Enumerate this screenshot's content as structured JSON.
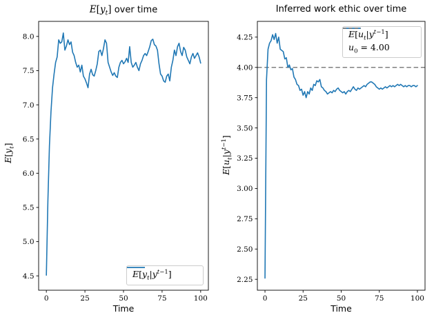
{
  "figure": {
    "background": "#ffffff",
    "accent_blue": "#1f77b4",
    "gray": "#7f7f7f"
  },
  "left_plot": {
    "title_math": "E[y_t]",
    "title_suffix": " over time",
    "ylabel_math": "E[y_t]",
    "xlabel": "Time",
    "legend": {
      "position": "lower right",
      "entries": [
        {
          "label_math": "E[y_t|y^{t-1}]",
          "color": "#1f77b4",
          "style": "solid"
        }
      ]
    }
  },
  "right_plot": {
    "title": "Inferred work ethic over time",
    "ylabel_math": "E[u_t|y^{t-1}]",
    "xlabel": "Time",
    "legend": {
      "position": "upper right",
      "entries": [
        {
          "label_math": "E[u_t|y^{t-1}]",
          "color": "#1f77b4",
          "style": "solid"
        },
        {
          "label_math": "u_0 = 4.00",
          "color": "#7f7f7f",
          "style": "dashed"
        }
      ]
    }
  },
  "chart_data": [
    {
      "type": "line",
      "title": "E[y_t] over time",
      "xlabel": "Time",
      "ylabel": "E[y_t]",
      "xlim": [
        -5,
        105
      ],
      "ylim": [
        4.29,
        8.22
      ],
      "xticks": [
        0,
        25,
        50,
        75,
        100
      ],
      "xtick_labels": [
        "0",
        "25",
        "50",
        "75",
        "100"
      ],
      "yticks": [
        4.5,
        5.0,
        5.5,
        6.0,
        6.5,
        7.0,
        7.5,
        8.0
      ],
      "ytick_labels": [
        "4.5",
        "5.0",
        "5.5",
        "6.0",
        "6.5",
        "7.0",
        "7.5",
        "8.0"
      ],
      "grid": false,
      "legend_position": "lower right",
      "series": [
        {
          "name": "E[y_t|y^{t-1}]",
          "color": "#1f77b4",
          "style": "solid",
          "line_width": 1.6,
          "x_start": 0,
          "x_step": 1,
          "y": [
            4.51,
            5.6,
            6.4,
            6.9,
            7.25,
            7.45,
            7.62,
            7.7,
            7.95,
            7.9,
            7.92,
            8.05,
            7.8,
            7.86,
            7.95,
            7.88,
            7.92,
            7.77,
            7.72,
            7.62,
            7.55,
            7.58,
            7.48,
            7.58,
            7.42,
            7.38,
            7.32,
            7.25,
            7.45,
            7.52,
            7.44,
            7.42,
            7.5,
            7.6,
            7.78,
            7.8,
            7.72,
            7.82,
            7.95,
            7.9,
            7.62,
            7.55,
            7.48,
            7.43,
            7.47,
            7.42,
            7.4,
            7.55,
            7.62,
            7.65,
            7.6,
            7.63,
            7.68,
            7.62,
            7.85,
            7.62,
            7.55,
            7.58,
            7.62,
            7.55,
            7.5,
            7.6,
            7.65,
            7.72,
            7.75,
            7.72,
            7.78,
            7.85,
            7.94,
            7.96,
            7.88,
            7.86,
            7.8,
            7.6,
            7.45,
            7.42,
            7.35,
            7.33,
            7.42,
            7.45,
            7.35,
            7.55,
            7.65,
            7.8,
            7.72,
            7.85,
            7.9,
            7.78,
            7.72,
            7.84,
            7.8,
            7.7,
            7.65,
            7.6,
            7.7,
            7.75,
            7.68,
            7.72,
            7.76,
            7.7,
            7.61
          ]
        }
      ]
    },
    {
      "type": "line",
      "title": "Inferred work ethic over time",
      "xlabel": "Time",
      "ylabel": "E[u_t|y^{t-1}]",
      "xlim": [
        -5,
        105
      ],
      "ylim": [
        2.16,
        4.38
      ],
      "xticks": [
        0,
        25,
        50,
        75,
        100
      ],
      "xtick_labels": [
        "0",
        "25",
        "50",
        "75",
        "100"
      ],
      "yticks": [
        2.25,
        2.5,
        2.75,
        3.0,
        3.25,
        3.5,
        3.75,
        4.0,
        4.25
      ],
      "ytick_labels": [
        "2.25",
        "2.50",
        "2.75",
        "3.00",
        "3.25",
        "3.50",
        "3.75",
        "4.00",
        "4.25"
      ],
      "grid": false,
      "legend_position": "upper right",
      "hline": {
        "y": 4.0,
        "label": "u_0 = 4.00",
        "color": "#7f7f7f",
        "style": "dashed",
        "line_width": 1.6
      },
      "series": [
        {
          "name": "E[u_t|y^{t-1}]",
          "color": "#1f77b4",
          "style": "solid",
          "line_width": 1.6,
          "x_start": 0,
          "x_step": 1,
          "y": [
            2.26,
            3.9,
            4.15,
            4.2,
            4.22,
            4.27,
            4.23,
            4.28,
            4.2,
            4.25,
            4.15,
            4.14,
            4.13,
            4.07,
            4.08,
            4.0,
            4.02,
            3.98,
            3.99,
            3.92,
            3.9,
            3.86,
            3.85,
            3.81,
            3.82,
            3.77,
            3.8,
            3.75,
            3.8,
            3.78,
            3.83,
            3.81,
            3.86,
            3.85,
            3.89,
            3.88,
            3.9,
            3.84,
            3.83,
            3.81,
            3.8,
            3.78,
            3.79,
            3.8,
            3.79,
            3.81,
            3.8,
            3.82,
            3.83,
            3.81,
            3.8,
            3.79,
            3.8,
            3.78,
            3.8,
            3.81,
            3.8,
            3.82,
            3.84,
            3.82,
            3.81,
            3.83,
            3.82,
            3.83,
            3.84,
            3.85,
            3.84,
            3.86,
            3.87,
            3.88,
            3.88,
            3.87,
            3.86,
            3.84,
            3.83,
            3.82,
            3.83,
            3.82,
            3.83,
            3.84,
            3.83,
            3.84,
            3.85,
            3.84,
            3.85,
            3.84,
            3.85,
            3.86,
            3.85,
            3.86,
            3.85,
            3.84,
            3.85,
            3.84,
            3.85,
            3.85,
            3.84,
            3.85,
            3.85,
            3.84,
            3.85
          ]
        }
      ]
    }
  ]
}
